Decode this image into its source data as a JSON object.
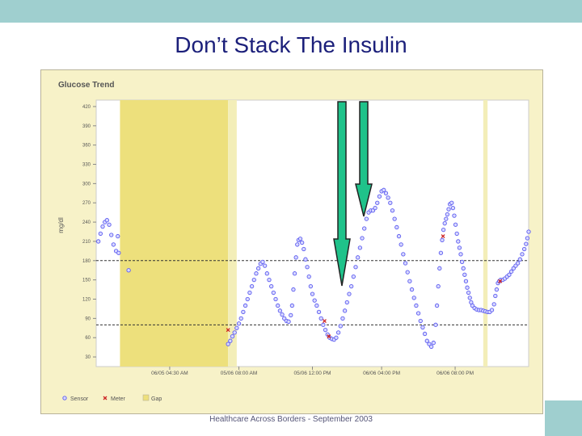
{
  "slide": {
    "title": "Don’t Stack The Insulin",
    "footer": "Healthcare Across Borders  -  September 2003"
  },
  "colors": {
    "title": "#1b1f7a",
    "panel_background": "#f7f2c8",
    "plot_background": "#ffffff",
    "gap_shade": "#ede07c",
    "gap_light": "#f3eeb8",
    "sensor": "#5c5cf0",
    "meter": "#cc2222",
    "arrow_fill": "#1fc28a",
    "arrow_stroke": "#222222",
    "band_teal": "#9fcfcf"
  },
  "chart_data": {
    "type": "scatter",
    "title": "Glucose Trend",
    "ylabel": "mg/dl",
    "xlabel": "",
    "ylim": [
      15,
      430
    ],
    "y_ticks": [
      30,
      60,
      90,
      120,
      150,
      180,
      210,
      240,
      270,
      300,
      330,
      360,
      390,
      420
    ],
    "xlim": [
      0,
      100
    ],
    "x_ticks": [
      {
        "x": 17,
        "label": "06/05 04:30 AM"
      },
      {
        "x": 33,
        "label": "05/06 08:00 AM"
      },
      {
        "x": 50,
        "label": "05/06 12:00 PM"
      },
      {
        "x": 66,
        "label": "06/06 04:00 PM"
      },
      {
        "x": 83,
        "label": "06/06 08:00 PM"
      }
    ],
    "target_lines": [
      180,
      80
    ],
    "gaps": [
      {
        "start": 5.5,
        "end": 30.5,
        "style": "dark"
      },
      {
        "start": 30.5,
        "end": 32.5,
        "style": "light"
      },
      {
        "start": 89.5,
        "end": 90.5,
        "style": "light"
      }
    ],
    "legend": [
      "Sensor",
      "Meter",
      "Gap"
    ],
    "legend_position": "bottom-left",
    "series": [
      {
        "name": "Sensor",
        "points": [
          [
            0.5,
            210
          ],
          [
            1,
            222
          ],
          [
            1.5,
            233
          ],
          [
            2,
            240
          ],
          [
            2.5,
            243
          ],
          [
            3,
            236
          ],
          [
            3.5,
            220
          ],
          [
            4,
            205
          ],
          [
            4.6,
            195
          ],
          [
            5,
            218
          ],
          [
            5.2,
            192
          ],
          [
            7.5,
            165
          ],
          [
            30.5,
            50
          ],
          [
            31,
            55
          ],
          [
            31.5,
            62
          ],
          [
            32,
            68
          ],
          [
            32.5,
            75
          ],
          [
            33,
            82
          ],
          [
            33.5,
            90
          ],
          [
            34,
            100
          ],
          [
            34.5,
            110
          ],
          [
            35,
            120
          ],
          [
            35.5,
            130
          ],
          [
            36,
            140
          ],
          [
            36.5,
            150
          ],
          [
            37,
            160
          ],
          [
            37.5,
            168
          ],
          [
            38,
            175
          ],
          [
            38.5,
            178
          ],
          [
            39,
            172
          ],
          [
            39.5,
            160
          ],
          [
            40,
            150
          ],
          [
            40.5,
            140
          ],
          [
            41,
            130
          ],
          [
            41.5,
            120
          ],
          [
            42,
            110
          ],
          [
            42.5,
            102
          ],
          [
            43,
            96
          ],
          [
            43.5,
            90
          ],
          [
            44,
            86
          ],
          [
            44.5,
            85
          ],
          [
            45,
            95
          ],
          [
            45.3,
            110
          ],
          [
            45.6,
            135
          ],
          [
            45.9,
            160
          ],
          [
            46.2,
            185
          ],
          [
            46.5,
            205
          ],
          [
            46.8,
            212
          ],
          [
            47.2,
            214
          ],
          [
            47.6,
            208
          ],
          [
            48,
            198
          ],
          [
            48.4,
            182
          ],
          [
            48.8,
            170
          ],
          [
            49.2,
            155
          ],
          [
            49.6,
            140
          ],
          [
            50,
            128
          ],
          [
            50.5,
            118
          ],
          [
            51,
            110
          ],
          [
            51.5,
            100
          ],
          [
            52,
            90
          ],
          [
            52.5,
            80
          ],
          [
            53,
            72
          ],
          [
            53.5,
            65
          ],
          [
            54,
            60
          ],
          [
            54.5,
            58
          ],
          [
            55,
            57
          ],
          [
            55.5,
            60
          ],
          [
            56,
            68
          ],
          [
            56.5,
            78
          ],
          [
            57,
            90
          ],
          [
            57.5,
            102
          ],
          [
            58,
            115
          ],
          [
            58.5,
            128
          ],
          [
            59,
            140
          ],
          [
            59.5,
            155
          ],
          [
            60,
            170
          ],
          [
            60.5,
            185
          ],
          [
            61,
            200
          ],
          [
            61.5,
            215
          ],
          [
            62,
            230
          ],
          [
            62.5,
            245
          ],
          [
            63,
            255
          ],
          [
            63.5,
            258
          ],
          [
            64,
            258
          ],
          [
            64.5,
            262
          ],
          [
            65,
            270
          ],
          [
            65.5,
            280
          ],
          [
            66,
            288
          ],
          [
            66.5,
            290
          ],
          [
            67,
            285
          ],
          [
            67.5,
            278
          ],
          [
            68,
            270
          ],
          [
            68.5,
            258
          ],
          [
            69,
            245
          ],
          [
            69.5,
            232
          ],
          [
            70,
            218
          ],
          [
            70.5,
            205
          ],
          [
            71,
            190
          ],
          [
            71.5,
            176
          ],
          [
            72,
            162
          ],
          [
            72.5,
            148
          ],
          [
            73,
            135
          ],
          [
            73.5,
            122
          ],
          [
            74,
            110
          ],
          [
            74.5,
            98
          ],
          [
            75,
            86
          ],
          [
            75.5,
            76
          ],
          [
            76,
            66
          ],
          [
            76.5,
            55
          ],
          [
            77,
            50
          ],
          [
            77.5,
            46
          ],
          [
            78,
            52
          ],
          [
            78.5,
            80
          ],
          [
            78.8,
            110
          ],
          [
            79.1,
            140
          ],
          [
            79.4,
            168
          ],
          [
            79.7,
            192
          ],
          [
            80,
            212
          ],
          [
            80.3,
            228
          ],
          [
            80.6,
            238
          ],
          [
            80.9,
            245
          ],
          [
            81.2,
            252
          ],
          [
            81.5,
            260
          ],
          [
            81.8,
            268
          ],
          [
            82.2,
            270
          ],
          [
            82.5,
            262
          ],
          [
            82.8,
            250
          ],
          [
            83.1,
            236
          ],
          [
            83.4,
            222
          ],
          [
            83.7,
            210
          ],
          [
            84,
            200
          ],
          [
            84.3,
            190
          ],
          [
            84.6,
            178
          ],
          [
            84.9,
            168
          ],
          [
            85.2,
            158
          ],
          [
            85.5,
            148
          ],
          [
            85.8,
            138
          ],
          [
            86.1,
            130
          ],
          [
            86.4,
            122
          ],
          [
            86.7,
            115
          ],
          [
            87,
            110
          ],
          [
            87.5,
            106
          ],
          [
            88,
            104
          ],
          [
            88.5,
            103
          ],
          [
            89,
            103
          ],
          [
            89.5,
            102
          ],
          [
            90,
            101
          ],
          [
            90.5,
            100
          ],
          [
            91,
            100
          ],
          [
            91.5,
            103
          ],
          [
            92,
            112
          ],
          [
            92.3,
            125
          ],
          [
            92.6,
            135
          ],
          [
            92.9,
            145
          ],
          [
            93.2,
            148
          ],
          [
            93.5,
            150
          ],
          [
            94,
            150
          ],
          [
            94.5,
            152
          ],
          [
            95,
            155
          ],
          [
            95.5,
            158
          ],
          [
            96,
            163
          ],
          [
            96.5,
            168
          ],
          [
            97,
            172
          ],
          [
            97.5,
            176
          ],
          [
            98,
            182
          ],
          [
            98.5,
            190
          ],
          [
            99,
            198
          ],
          [
            99.4,
            206
          ],
          [
            99.7,
            215
          ],
          [
            100,
            225
          ]
        ]
      },
      {
        "name": "Meter",
        "points": [
          [
            30.5,
            72
          ],
          [
            52.8,
            86
          ],
          [
            53.8,
            62
          ],
          [
            80.2,
            218
          ],
          [
            93.4,
            148
          ]
        ]
      }
    ]
  }
}
